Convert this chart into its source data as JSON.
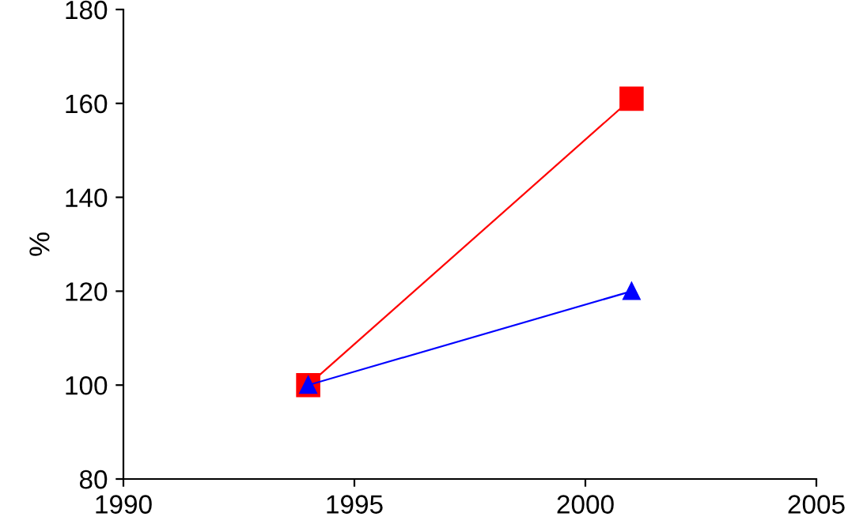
{
  "chart_data": {
    "type": "line",
    "ylabel": "%",
    "x": [
      1994,
      2001
    ],
    "series": [
      {
        "color": "#ff0000",
        "values": [
          100,
          161
        ],
        "marker": "square"
      },
      {
        "color": "#0000ff",
        "values": [
          100,
          120
        ],
        "marker": "triangle"
      }
    ],
    "xlim": [
      1990,
      2005
    ],
    "xticks": [
      1990,
      1995,
      2000,
      2005
    ],
    "ylim": [
      80,
      180
    ],
    "yticks": [
      80,
      100,
      120,
      140,
      160,
      180
    ],
    "grid": false,
    "legend": false,
    "line_style": "solid"
  }
}
